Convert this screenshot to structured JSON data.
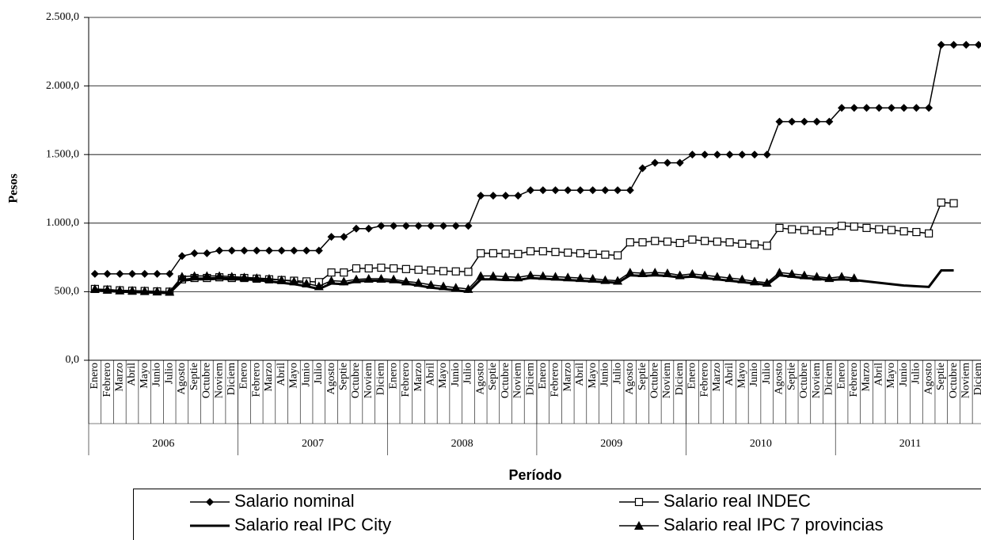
{
  "chart_data": {
    "type": "line",
    "y_label": "Pesos",
    "x_label": "Período",
    "categories": [
      "Enero",
      "Febrero",
      "Marzo",
      "Abril",
      "Mayo",
      "Junio",
      "Julio",
      "Agosto",
      "Septie",
      "Octubre",
      "Noviem",
      "Diciem",
      "Enero",
      "Febrero",
      "Marzo",
      "Abril",
      "Mayo",
      "Junio",
      "Julio",
      "Agosto",
      "Septie",
      "Octubre",
      "Noviem",
      "Diciem",
      "Enero",
      "Febrero",
      "Marzo",
      "Abril",
      "Mayo",
      "Junio",
      "Julio",
      "Agosto",
      "Septie",
      "Octubre",
      "Noviem",
      "Diciem",
      "Enero",
      "Febrero",
      "Marzo",
      "Abril",
      "Mayo",
      "Junio",
      "Julio",
      "Agosto",
      "Septie",
      "Octubre",
      "Noviem",
      "Diciem",
      "Enero",
      "Febrero",
      "Marzo",
      "Abril",
      "Mayo",
      "Junio",
      "Julio",
      "Agosto",
      "Septie",
      "Octubre",
      "Noviem",
      "Diciem",
      "Enero",
      "Febrero",
      "Marzo",
      "Abril",
      "Mayo",
      "Junio",
      "Julio",
      "Agosto",
      "Septie",
      "Octubre",
      "Noviem",
      "Diciem"
    ],
    "category_groups": [
      "2006",
      "2007",
      "2008",
      "2009",
      "2010",
      "2011"
    ],
    "ylim": [
      0,
      2500
    ],
    "yticks": [
      {
        "value": 0,
        "label": "0,0"
      },
      {
        "value": 500,
        "label": "500,0"
      },
      {
        "value": 1000,
        "label": "1.000,0"
      },
      {
        "value": 1500,
        "label": "1.500,0"
      },
      {
        "value": 2000,
        "label": "2.000,0"
      },
      {
        "value": 2500,
        "label": "2.500,0"
      }
    ],
    "grid": true,
    "series": [
      {
        "name": "Salario nominal",
        "color": "#000000",
        "marker": "diamond",
        "values": [
          630,
          630,
          630,
          630,
          630,
          630,
          630,
          760,
          780,
          780,
          800,
          800,
          800,
          800,
          800,
          800,
          800,
          800,
          800,
          900,
          900,
          960,
          960,
          980,
          980,
          980,
          980,
          980,
          980,
          980,
          980,
          1200,
          1200,
          1200,
          1200,
          1240,
          1240,
          1240,
          1240,
          1240,
          1240,
          1240,
          1240,
          1240,
          1400,
          1440,
          1440,
          1440,
          1500,
          1500,
          1500,
          1500,
          1500,
          1500,
          1500,
          1740,
          1740,
          1740,
          1740,
          1740,
          1840,
          1840,
          1840,
          1840,
          1840,
          1840,
          1840,
          1840,
          2300,
          2300,
          2300,
          2300
        ]
      },
      {
        "name": "Salario real INDEC",
        "color": "#000000",
        "marker": "square",
        "values": [
          520,
          515,
          510,
          507,
          505,
          502,
          500,
          590,
          600,
          600,
          605,
          600,
          600,
          595,
          590,
          585,
          580,
          575,
          570,
          640,
          640,
          670,
          670,
          675,
          670,
          665,
          660,
          655,
          650,
          648,
          645,
          780,
          780,
          778,
          775,
          795,
          795,
          790,
          785,
          780,
          775,
          770,
          765,
          860,
          860,
          870,
          865,
          855,
          880,
          870,
          865,
          860,
          850,
          845,
          835,
          965,
          955,
          950,
          945,
          940,
          980,
          975,
          965,
          955,
          950,
          940,
          935,
          925,
          1150,
          1145,
          null,
          null
        ]
      },
      {
        "name": "Salario real IPC City",
        "color": "#000000",
        "marker": "none",
        "values": [
          510,
          505,
          500,
          498,
          495,
          493,
          490,
          580,
          590,
          590,
          595,
          590,
          590,
          585,
          575,
          565,
          555,
          540,
          520,
          560,
          555,
          575,
          580,
          580,
          575,
          560,
          545,
          530,
          520,
          510,
          500,
          590,
          590,
          585,
          585,
          600,
          595,
          590,
          585,
          580,
          575,
          570,
          565,
          620,
          615,
          620,
          615,
          605,
          610,
          600,
          590,
          580,
          570,
          560,
          550,
          620,
          610,
          600,
          595,
          585,
          590,
          585,
          575,
          565,
          555,
          545,
          540,
          535,
          655,
          655,
          null,
          null
        ]
      },
      {
        "name": "Salario real IPC 7 provincias",
        "color": "#000000",
        "marker": "triangle",
        "values": [
          520,
          515,
          510,
          508,
          505,
          502,
          500,
          610,
          615,
          615,
          615,
          610,
          605,
          600,
          595,
          585,
          575,
          560,
          540,
          580,
          575,
          590,
          595,
          595,
          590,
          575,
          565,
          550,
          540,
          530,
          520,
          615,
          615,
          610,
          605,
          620,
          615,
          610,
          605,
          600,
          595,
          585,
          580,
          640,
          635,
          640,
          635,
          620,
          630,
          620,
          610,
          600,
          590,
          575,
          565,
          640,
          630,
          620,
          610,
          600,
          610,
          600,
          null,
          null,
          null,
          null,
          null,
          null,
          null,
          null,
          null,
          null
        ]
      }
    ]
  }
}
